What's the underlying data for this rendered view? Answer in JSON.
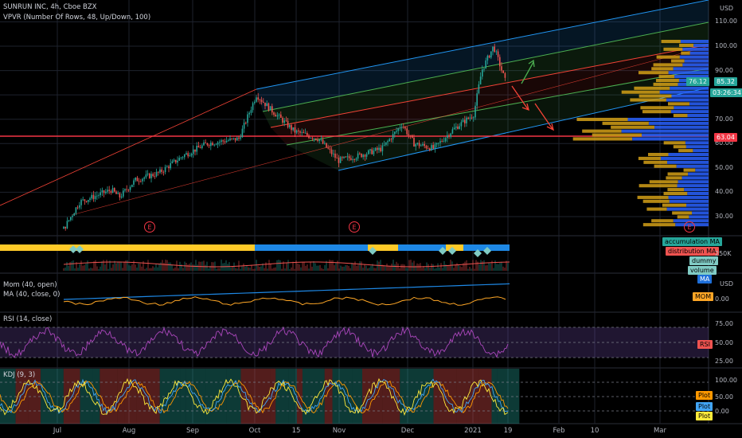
{
  "main": {
    "title": "SUNRUN INC, 4h, Cboe BZX",
    "indicator": "VPVR (Number Of Rows, 48, Up/Down, 100)",
    "currency": "USD",
    "y_ticks": [
      "110.00",
      "100.00",
      "90.00",
      "80.00",
      "70.00",
      "60.00",
      "50.00",
      "40.00",
      "30.00"
    ],
    "last_price": "85.32",
    "vpvr_tag": "76.12",
    "timer": "03:26:34",
    "line_tag": "63.04",
    "earnings_marker": "E"
  },
  "volume_panel": {
    "tags": [
      "accumulation MA",
      "distribution MA",
      "dummy",
      "volume"
    ],
    "y_tick": "250K"
  },
  "mom_panel": {
    "title_line1": "Mom (40, open)",
    "title_line2": "MA (40, close, 0)",
    "currency": "USD",
    "tags": [
      "MA",
      "MOM"
    ],
    "y_tick": "0.00"
  },
  "rsi_panel": {
    "title": "RSI (14, close)",
    "y_ticks": [
      "75.00",
      "50.00",
      "25.00"
    ],
    "tag": "RSI"
  },
  "kdj_panel": {
    "title": "KDJ (9, 3)",
    "y_ticks": [
      "100.00",
      "50.00",
      "0.00"
    ],
    "tags": [
      "Plot",
      "Plot",
      "Plot"
    ]
  },
  "x_axis": [
    "Jul",
    "Aug",
    "Sep",
    "Oct",
    "15",
    "Nov",
    "Dec",
    "2021",
    "19",
    "Feb",
    "10",
    "Mar"
  ],
  "colors": {
    "up": "#26a69a",
    "down": "#ef5350",
    "bg": "#000000",
    "grid": "#1e222d",
    "vp_up": "#2962ff",
    "vp_down": "#d4a017",
    "channel": "#2196f3"
  },
  "chart_data": {
    "type": "candlestick",
    "symbol": "SUNRUN INC",
    "interval": "4h",
    "ylim": [
      25,
      115
    ],
    "approx_close_path": [
      [
        "Jul",
        25
      ],
      [
        "Jul",
        35
      ],
      [
        "Aug",
        41
      ],
      [
        "Aug",
        38
      ],
      [
        "Aug",
        45
      ],
      [
        "Sep",
        50
      ],
      [
        "Sep",
        55
      ],
      [
        "Sep",
        60
      ],
      [
        "Oct",
        80
      ],
      [
        "Oct",
        73
      ],
      [
        "15",
        65
      ],
      [
        "15",
        62
      ],
      [
        "Nov",
        55
      ],
      [
        "Nov",
        52
      ],
      [
        "Nov",
        58
      ],
      [
        "Dec",
        68
      ],
      [
        "Dec",
        58
      ],
      [
        "Dec",
        62
      ],
      [
        "2021",
        70
      ],
      [
        "2021",
        80
      ],
      [
        "2021",
        95
      ],
      [
        "19",
        100
      ],
      [
        "19",
        85.32
      ]
    ],
    "horizontal_line": 63.04,
    "last_price": 85.32,
    "rsi_levels": [
      75,
      50,
      25
    ],
    "kdj_levels": [
      100,
      50,
      0
    ]
  }
}
